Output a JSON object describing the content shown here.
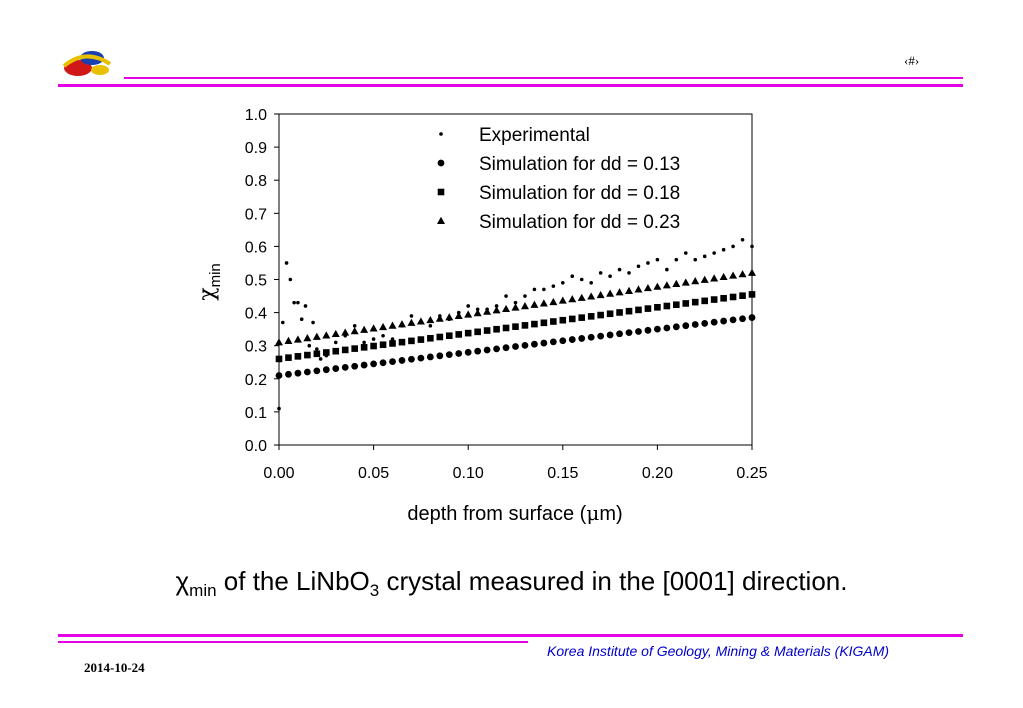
{
  "header": {
    "page_number": "‹#›"
  },
  "caption": {
    "chi": "χ",
    "chi_sub": "min",
    "part1": " of the LiNbO",
    "sub3": "3",
    "part2": " crystal measured in the [0001] direction."
  },
  "footer": {
    "organization": "Korea Institute of Geology, Mining & Materials (KIGAM)",
    "date": "2014-10-24"
  },
  "colors": {
    "rule": "#e600e6",
    "footer_text": "#0000cc",
    "marker": "#000000"
  },
  "chart_data": {
    "type": "scatter",
    "xlabel_prefix": "depth from surface (",
    "xlabel_unit": "μ",
    "xlabel_suffix": "m)",
    "ylabel_main": "χ",
    "ylabel_sub": "min",
    "xlim": [
      0,
      0.25
    ],
    "ylim": [
      0,
      1.0
    ],
    "x_ticks": [
      "0.00",
      "0.05",
      "0.10",
      "0.15",
      "0.20",
      "0.25"
    ],
    "y_ticks": [
      "0.0",
      "0.1",
      "0.2",
      "0.3",
      "0.4",
      "0.5",
      "0.6",
      "0.7",
      "0.8",
      "0.9",
      "1.0"
    ],
    "grid": false,
    "legend_position": "top-right",
    "series": [
      {
        "name": "Experimental",
        "marker": "dot",
        "x": [
          0.0,
          0.002,
          0.004,
          0.006,
          0.008,
          0.01,
          0.012,
          0.014,
          0.016,
          0.018,
          0.02,
          0.022,
          0.025,
          0.03,
          0.035,
          0.04,
          0.045,
          0.05,
          0.055,
          0.06,
          0.065,
          0.07,
          0.075,
          0.08,
          0.085,
          0.09,
          0.095,
          0.1,
          0.105,
          0.11,
          0.115,
          0.12,
          0.125,
          0.13,
          0.135,
          0.14,
          0.145,
          0.15,
          0.155,
          0.16,
          0.165,
          0.17,
          0.175,
          0.18,
          0.185,
          0.19,
          0.195,
          0.2,
          0.205,
          0.21,
          0.215,
          0.22,
          0.225,
          0.23,
          0.235,
          0.24,
          0.245,
          0.25
        ],
        "y": [
          0.11,
          0.37,
          0.55,
          0.5,
          0.43,
          0.43,
          0.38,
          0.42,
          0.3,
          0.37,
          0.29,
          0.26,
          0.27,
          0.31,
          0.33,
          0.36,
          0.31,
          0.32,
          0.33,
          0.32,
          0.36,
          0.39,
          0.37,
          0.36,
          0.39,
          0.38,
          0.4,
          0.42,
          0.41,
          0.41,
          0.42,
          0.45,
          0.43,
          0.45,
          0.47,
          0.47,
          0.48,
          0.49,
          0.51,
          0.5,
          0.49,
          0.52,
          0.51,
          0.53,
          0.52,
          0.54,
          0.55,
          0.56,
          0.53,
          0.56,
          0.58,
          0.56,
          0.57,
          0.58,
          0.59,
          0.6,
          0.62,
          0.6
        ]
      },
      {
        "name": "Simulation for dd = 0.13",
        "marker": "circle",
        "x": [
          0.0,
          0.25
        ],
        "y": [
          0.21,
          0.385
        ]
      },
      {
        "name": "Simulation for dd = 0.18",
        "marker": "square",
        "x": [
          0.0,
          0.25
        ],
        "y": [
          0.26,
          0.455
        ]
      },
      {
        "name": "Simulation for dd = 0.23",
        "marker": "triangle",
        "x": [
          0.0,
          0.25
        ],
        "y": [
          0.31,
          0.52
        ]
      }
    ]
  }
}
